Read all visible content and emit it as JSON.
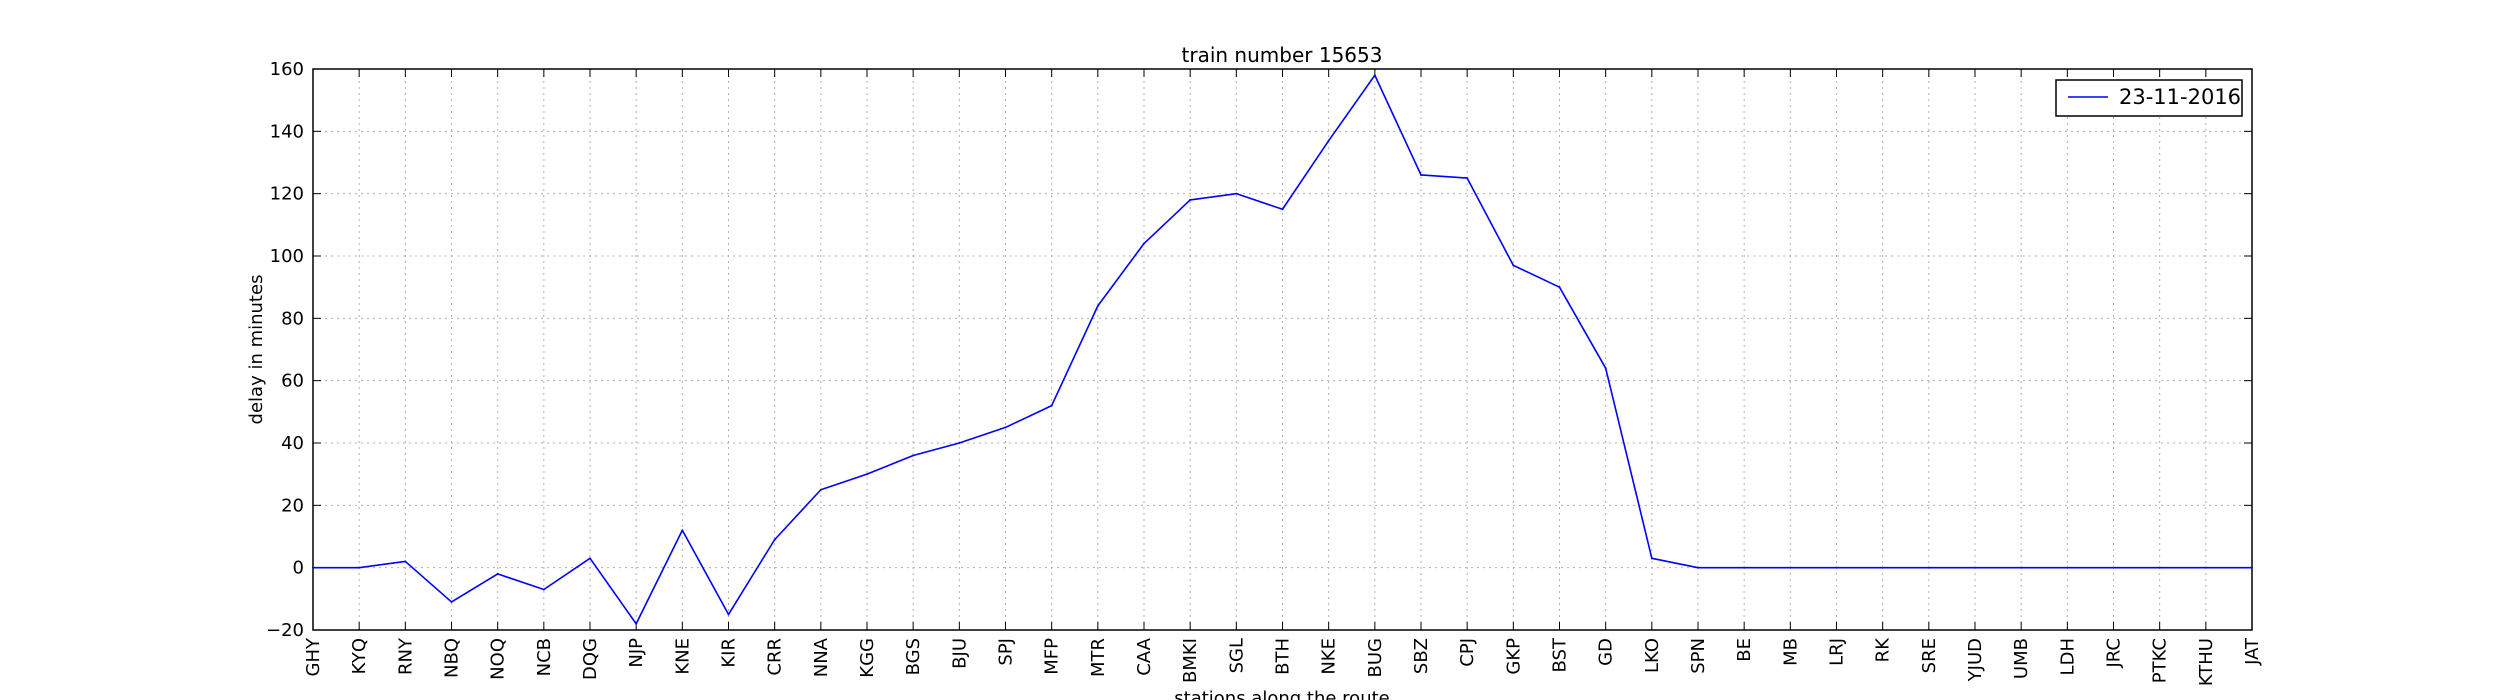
{
  "chart_data": {
    "type": "line",
    "title": "train number 15653",
    "xlabel": "stations along the route",
    "ylabel": "delay in minutes",
    "categories": [
      "GHY",
      "KYQ",
      "RNY",
      "NBQ",
      "NOQ",
      "NCB",
      "DQG",
      "NJP",
      "KNE",
      "KIR",
      "CRR",
      "NNA",
      "KGG",
      "BGS",
      "BJU",
      "SPJ",
      "MFP",
      "MTR",
      "CAA",
      "BMKI",
      "SGL",
      "BTH",
      "NKE",
      "BUG",
      "SBZ",
      "CPJ",
      "GKP",
      "BST",
      "GD",
      "LKO",
      "SPN",
      "BE",
      "MB",
      "LRJ",
      "RK",
      "SRE",
      "YJUD",
      "UMB",
      "LDH",
      "JRC",
      "PTKC",
      "KTHU",
      "JAT"
    ],
    "series": [
      {
        "name": "23-11-2016",
        "color": "#0000ff",
        "values": [
          0,
          0,
          2,
          -11,
          -2,
          -7,
          3,
          -18,
          12,
          -15,
          9,
          25,
          30,
          36,
          40,
          45,
          52,
          84,
          104,
          118,
          120,
          115,
          137,
          158,
          126,
          125,
          97,
          90,
          64,
          3,
          0,
          0,
          0,
          0,
          0,
          0,
          0,
          0,
          0,
          0,
          0,
          0,
          0
        ]
      }
    ],
    "ylim": [
      -20,
      160
    ],
    "yticks": [
      "−20",
      "0",
      "20",
      "40",
      "60",
      "80",
      "100",
      "120",
      "140",
      "160"
    ],
    "grid": true,
    "legend_position": "top-right"
  }
}
